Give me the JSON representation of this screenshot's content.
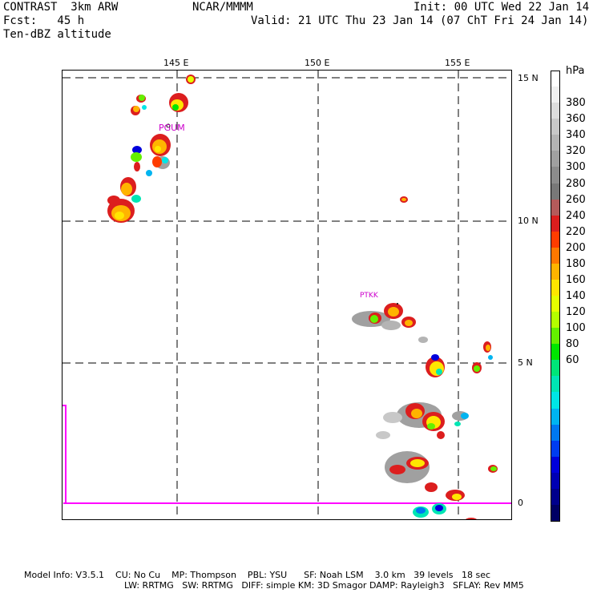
{
  "header": {
    "model": "CONTRAST  3km ARW",
    "org": "NCAR/MMMM",
    "init": "Init: 00 UTC Wed 22 Jan 14",
    "fcst": "Fcst:   45 h",
    "valid": "Valid: 21 UTC Thu 23 Jan 14 (07 ChT Fri 24 Jan 14)",
    "field": "Ten-dBZ altitude"
  },
  "map": {
    "lon_labels": [
      "145 E",
      "150 E",
      "155 E"
    ],
    "lat_labels": [
      "15 N",
      "10 N",
      "5 N",
      "0"
    ],
    "stations": [
      "PGUM",
      "PTKK"
    ],
    "boundary_color": "#ff00ff"
  },
  "colorbar": {
    "unit": "hPa",
    "labels": [
      "380",
      "360",
      "340",
      "320",
      "300",
      "280",
      "260",
      "240",
      "220",
      "200",
      "180",
      "160",
      "140",
      "120",
      "100",
      "80",
      "60"
    ],
    "colors": [
      "#ffffff",
      "#f0f0f0",
      "#dcdcdc",
      "#c8c8c8",
      "#b4b4b4",
      "#a0a0a0",
      "#8c8c8c",
      "#787878",
      "#b45a5a",
      "#dc1e1e",
      "#ff3c00",
      "#ff7800",
      "#ffb400",
      "#ffe600",
      "#e6ff00",
      "#b4ff00",
      "#64f000",
      "#00e600",
      "#00e678",
      "#00e6b4",
      "#00e6e6",
      "#00b4f0",
      "#0078f0",
      "#003cf0",
      "#0000dc",
      "#0000b4",
      "#00008c",
      "#000064"
    ]
  },
  "footer": {
    "line1": "Model Info: V3.5.1    CU: No Cu    MP: Thompson    PBL: YSU      SF: Noah LSM    3.0 km   39 levels   18 sec",
    "line2": "LW: RRTMG   SW: RRTMG   DIFF: simple KM: 3D Smagor DAMP: Rayleigh3   SFLAY: Rev MM5"
  }
}
